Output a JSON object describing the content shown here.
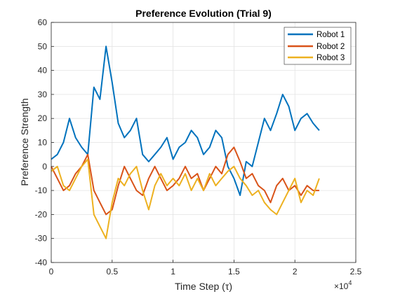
{
  "chart_data": {
    "type": "line",
    "title": "Preference Evolution (Trial 9)",
    "xlabel": "Time Step (τ)",
    "ylabel": "Preference Strength",
    "x_exponent_label": "×10",
    "x_exponent_power": "4",
    "xlim": [
      0,
      2.5
    ],
    "ylim": [
      -40,
      60
    ],
    "x_ticks": [
      "0",
      "0.5",
      "1",
      "1.5",
      "2",
      "2.5"
    ],
    "x_tick_values": [
      0,
      0.5,
      1,
      1.5,
      2,
      2.5
    ],
    "y_ticks": [
      "-40",
      "-30",
      "-20",
      "-10",
      "0",
      "10",
      "20",
      "30",
      "40",
      "50",
      "60"
    ],
    "y_tick_values": [
      -40,
      -30,
      -20,
      -10,
      0,
      10,
      20,
      30,
      40,
      50,
      60
    ],
    "grid": true,
    "legend_position": "top-right",
    "series": [
      {
        "name": "Robot 1",
        "color": "#0072BD",
        "x": [
          0,
          0.05,
          0.1,
          0.15,
          0.2,
          0.25,
          0.3,
          0.35,
          0.4,
          0.45,
          0.5,
          0.55,
          0.6,
          0.65,
          0.7,
          0.75,
          0.8,
          0.85,
          0.9,
          0.95,
          1.0,
          1.05,
          1.1,
          1.15,
          1.2,
          1.25,
          1.3,
          1.35,
          1.4,
          1.45,
          1.5,
          1.55,
          1.6,
          1.65,
          1.7,
          1.75,
          1.8,
          1.85,
          1.9,
          1.95,
          2.0,
          2.05,
          2.1,
          2.15,
          2.2
        ],
        "values": [
          3,
          5,
          10,
          20,
          12,
          8,
          5,
          33,
          28,
          50,
          35,
          18,
          12,
          15,
          20,
          5,
          2,
          5,
          8,
          12,
          3,
          8,
          10,
          15,
          12,
          5,
          8,
          15,
          12,
          0,
          -5,
          -12,
          2,
          0,
          10,
          20,
          15,
          22,
          30,
          25,
          15,
          20,
          22,
          18,
          15
        ]
      },
      {
        "name": "Robot 2",
        "color": "#D95319",
        "x": [
          0,
          0.05,
          0.1,
          0.15,
          0.2,
          0.25,
          0.3,
          0.35,
          0.4,
          0.45,
          0.5,
          0.55,
          0.6,
          0.65,
          0.7,
          0.75,
          0.8,
          0.85,
          0.9,
          0.95,
          1.0,
          1.05,
          1.1,
          1.15,
          1.2,
          1.25,
          1.3,
          1.35,
          1.4,
          1.45,
          1.5,
          1.55,
          1.6,
          1.65,
          1.7,
          1.75,
          1.8,
          1.85,
          1.9,
          1.95,
          2.0,
          2.05,
          2.1,
          2.15,
          2.2
        ],
        "values": [
          0,
          -5,
          -10,
          -8,
          -3,
          0,
          5,
          -10,
          -15,
          -20,
          -18,
          -8,
          0,
          -5,
          -10,
          -12,
          -5,
          0,
          -5,
          -10,
          -8,
          -5,
          0,
          -5,
          -3,
          -10,
          -5,
          0,
          -3,
          5,
          8,
          2,
          -5,
          -3,
          -8,
          -10,
          -15,
          -8,
          -5,
          -10,
          -8,
          -12,
          -8,
          -10,
          -10
        ]
      },
      {
        "name": "Robot 3",
        "color": "#EDB120",
        "x": [
          0,
          0.05,
          0.1,
          0.15,
          0.2,
          0.25,
          0.3,
          0.35,
          0.4,
          0.45,
          0.5,
          0.55,
          0.6,
          0.65,
          0.7,
          0.75,
          0.8,
          0.85,
          0.9,
          0.95,
          1.0,
          1.05,
          1.1,
          1.15,
          1.2,
          1.25,
          1.3,
          1.35,
          1.4,
          1.45,
          1.5,
          1.55,
          1.6,
          1.65,
          1.7,
          1.75,
          1.8,
          1.85,
          1.9,
          1.95,
          2.0,
          2.05,
          2.1,
          2.15,
          2.2
        ],
        "values": [
          -2,
          0,
          -8,
          -10,
          -5,
          0,
          3,
          -20,
          -25,
          -30,
          -15,
          -5,
          -8,
          -3,
          0,
          -10,
          -18,
          -8,
          -3,
          -8,
          -5,
          -8,
          -3,
          -10,
          -5,
          -10,
          -3,
          -8,
          -5,
          -2,
          0,
          -5,
          -8,
          -12,
          -10,
          -15,
          -18,
          -20,
          -15,
          -10,
          -5,
          -15,
          -10,
          -12,
          -5
        ]
      }
    ]
  }
}
